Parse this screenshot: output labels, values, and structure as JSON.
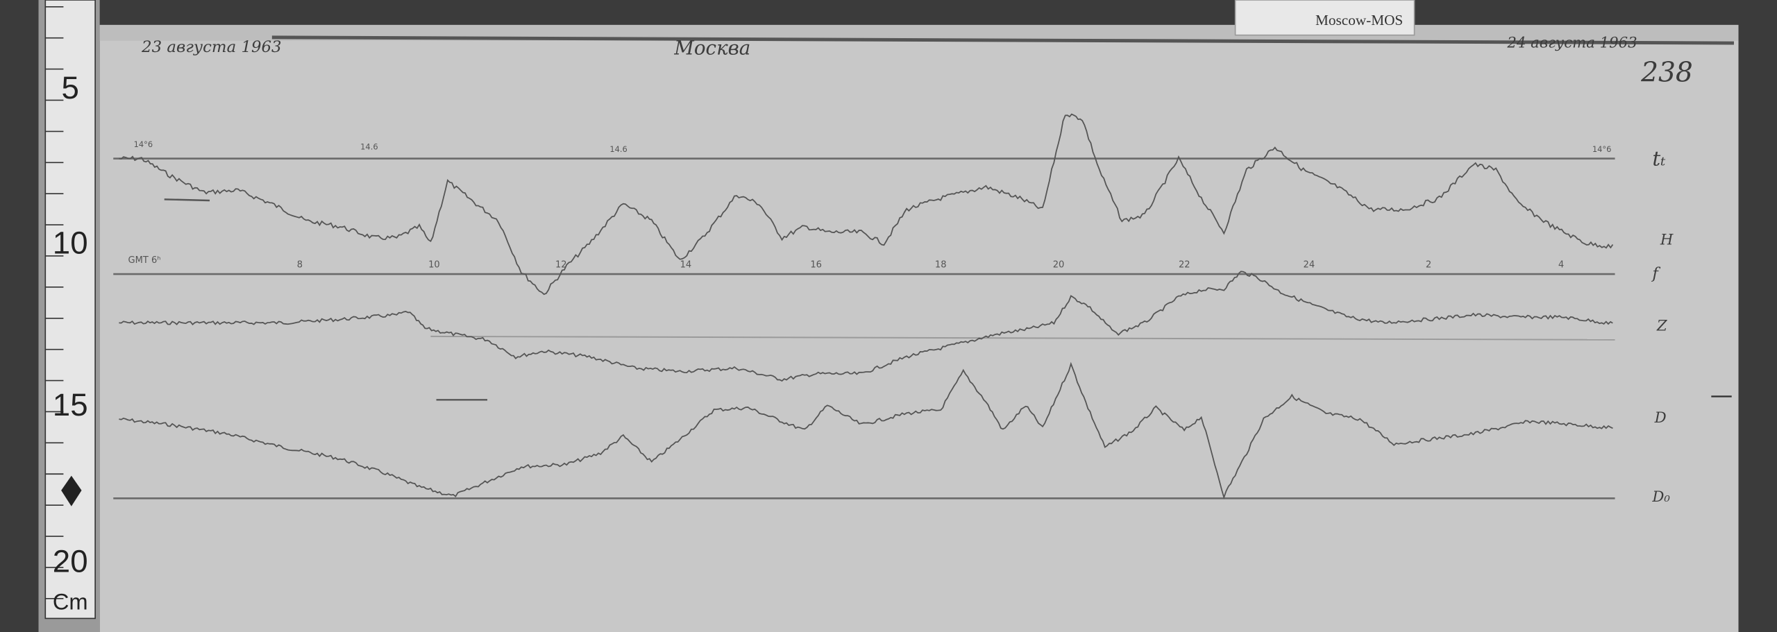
{
  "header": {
    "date_start": "23 августа 1963",
    "station_handwritten": "Москва",
    "date_end": "24 августа 1963",
    "sheet_number": "238",
    "station_tag": "Moscow-MOS"
  },
  "ruler": {
    "marks": [
      "5",
      "10",
      "15",
      "20"
    ],
    "unit": "Cm"
  },
  "temperature_labels": [
    "14°6",
    "14.6",
    "14.6",
    "14°6"
  ],
  "time_axis": {
    "prefix": "GMT 6ʰ",
    "hours": [
      "8",
      "10",
      "12",
      "14",
      "16",
      "18",
      "20",
      "22",
      "24",
      "2",
      "4"
    ]
  },
  "trace_labels": {
    "temperature": "tₜ",
    "h": "H",
    "baseline_f": "f",
    "z": "Z",
    "d": "D",
    "d_baseline": "D₀"
  },
  "colors": {
    "paper": "#c9c9c9",
    "ink": "#555555",
    "background": "#3a3a3a"
  }
}
